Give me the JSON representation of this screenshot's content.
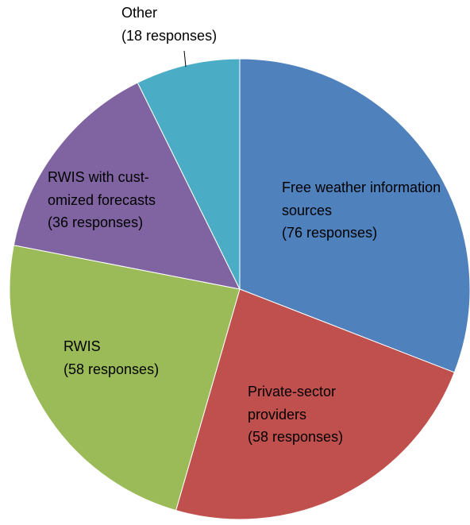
{
  "chart_data": {
    "type": "pie",
    "categories": [
      "Free weather information sources",
      "Private-sector providers",
      "RWIS",
      "RWIS with cust-omized forecasts",
      "Other"
    ],
    "values": [
      76,
      58,
      58,
      36,
      18
    ],
    "value_labels": [
      "(76 responses)",
      "(58 responses)",
      "(58 responses)",
      "(36 responses)",
      "(18 responses)"
    ],
    "colors": [
      "#4f81bd",
      "#c0504d",
      "#9bbb59",
      "#8064a2",
      "#4bacc6"
    ]
  }
}
